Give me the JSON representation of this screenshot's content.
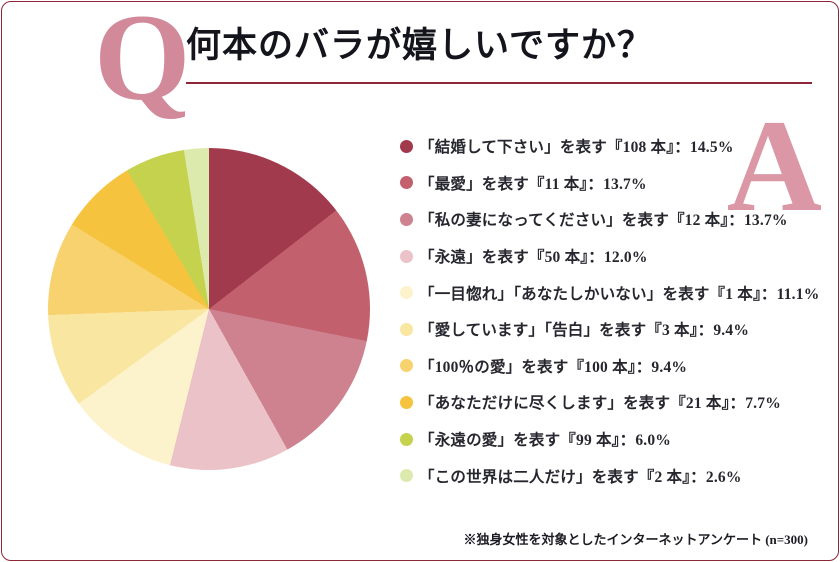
{
  "page": {
    "question_mark": "Q",
    "answer_mark": "A",
    "title": "何本のバラが嬉しいですか？",
    "footnote": "※独身女性を対象としたインターネットアンケート (n=300)"
  },
  "chart_data": {
    "type": "pie",
    "title": "何本のバラが嬉しいですか？",
    "unit": "%",
    "start_angle_deg": 0,
    "direction": "clockwise",
    "legend_position": "right",
    "note": "※独身女性を対象としたインターネットアンケート (n=300)",
    "items": [
      {
        "text": "「結婚して下さい」を表す『108 本』：14.5%",
        "label": "「結婚して下さい」を表す『108 本』",
        "value": 14.5,
        "color": "#a23a4e"
      },
      {
        "text": "「最愛」を表す『11 本』：13.7%",
        "label": "「最愛」を表す『11 本』",
        "value": 13.7,
        "color": "#c2606e"
      },
      {
        "text": "「私の妻になってください」を表す『12 本』：13.7%",
        "label": "「私の妻になってください」を表す『12 本』",
        "value": 13.7,
        "color": "#ce8290"
      },
      {
        "text": "「永遠」を表す『50 本』：12.0%",
        "label": "「永遠」を表す『50 本』",
        "value": 12.0,
        "color": "#ecc2c9"
      },
      {
        "text": "「一目惚れ」「あなたしかいない」を表す『1 本』：11.1%",
        "label": "「一目惚れ」「あなたしかいない」を表す『1 本』",
        "value": 11.1,
        "color": "#fcf3cd"
      },
      {
        "text": "「愛しています」「告白」を表す『3 本』：9.4%",
        "label": "「愛しています」「告白」を表す『3 本』",
        "value": 9.4,
        "color": "#f9e6a0"
      },
      {
        "text": "「100％の愛」を表す『100 本』：9.4%",
        "label": "「100％の愛」を表す『100 本』",
        "value": 9.4,
        "color": "#f8d26e"
      },
      {
        "text": "「あなただけに尽くします」を表す『21 本』：7.7%",
        "label": "「あなただけに尽くします」を表す『21 本』",
        "value": 7.7,
        "color": "#f5c33e"
      },
      {
        "text": "「永遠の愛」を表す『99 本』：6.0%",
        "label": "「永遠の愛」を表す『99 本』",
        "value": 6.0,
        "color": "#c5d24d"
      },
      {
        "text": "「この世界は二人だけ」を表す『2 本』：2.6%",
        "label": "「この世界は二人だけ」を表す『2 本』",
        "value": 2.6,
        "color": "#dcebad"
      }
    ]
  }
}
